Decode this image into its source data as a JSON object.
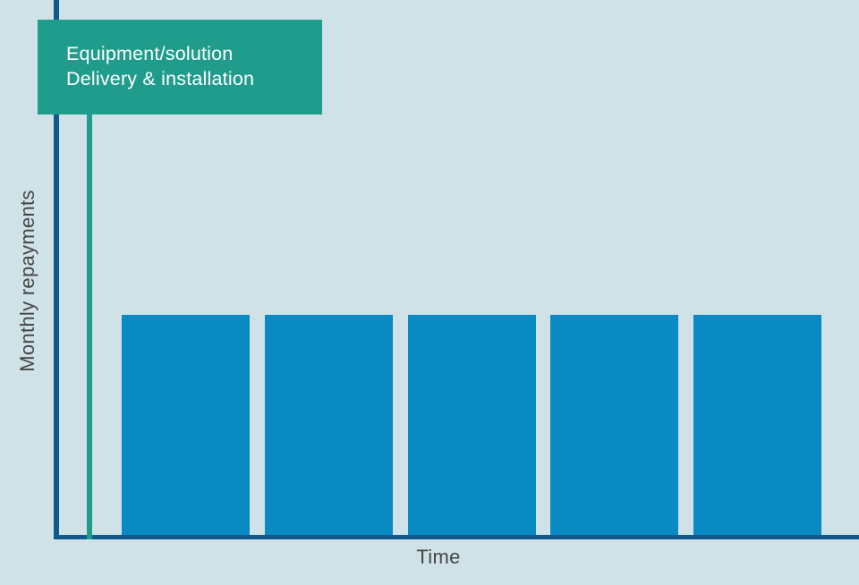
{
  "chart_data": {
    "type": "bar",
    "title": "",
    "xlabel": "Time",
    "ylabel": "Monthly repayments",
    "categories": [
      "",
      "",
      "",
      "",
      ""
    ],
    "values": [
      1,
      1,
      1,
      1,
      1
    ],
    "ylim": [
      0,
      2.43
    ],
    "grid": false,
    "legend": null,
    "axis_tick_labels": "none",
    "description": "Five equal-height bars depicting constant monthly repayments over time",
    "annotations": [
      {
        "type": "callout-with-vertical-marker-line",
        "text": [
          "Equipment/solution",
          "Delivery & installation"
        ],
        "x_position": "start-of-timeline"
      }
    ]
  },
  "colors": {
    "background": "#cfe2e7",
    "bar": "#098ac2",
    "axis": "#10598a",
    "accent": "#1f9c8b",
    "callout_text": "#ffffff",
    "label_text": "#464646"
  }
}
